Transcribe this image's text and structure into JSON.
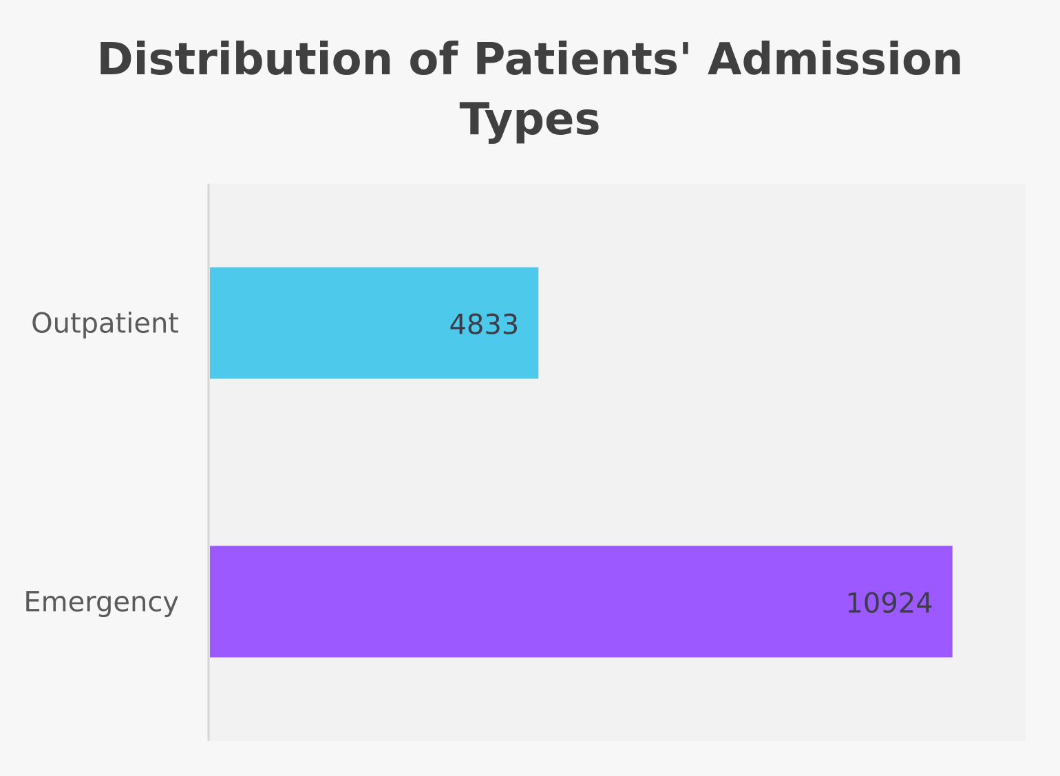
{
  "chart_data": {
    "type": "bar",
    "orientation": "horizontal",
    "title_lines": [
      "Distribution of Patients' Admission",
      "Types"
    ],
    "categories": [
      "Outpatient",
      "Emergency"
    ],
    "values": [
      4833,
      10924
    ],
    "colors": [
      "#4dc9ec",
      "#9b59ff"
    ],
    "data_labels": [
      "4833",
      "10924"
    ],
    "xlim": [
      0,
      12000
    ],
    "grid": false,
    "plot_background": "#f2f2f2",
    "page_background": "#f7f7f7",
    "axis_color": "#d6d6d6"
  }
}
